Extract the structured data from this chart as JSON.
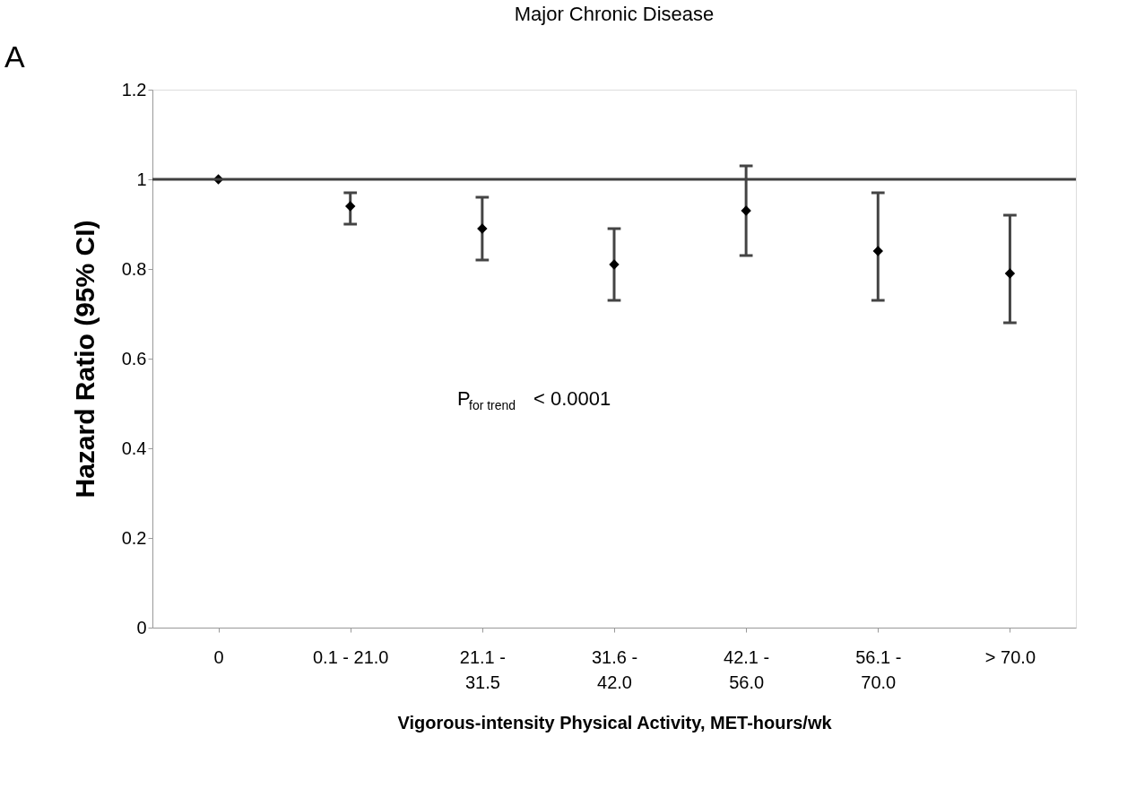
{
  "chart_data": {
    "type": "scatter",
    "title": "Major Chronic Disease",
    "xlabel": "Vigorous-intensity Physical Activity, MET-hours/wk",
    "ylabel": "Hazard Ratio (95% CI)",
    "categories": [
      "0",
      "0.1 - 21.0",
      "21.1 -\n31.5",
      "31.6 -\n42.0",
      "42.1 -\n56.0",
      "56.1 -\n70.0",
      "> 70.0"
    ],
    "series": [
      {
        "color": "#000000",
        "values": [
          1.0,
          0.94,
          0.89,
          0.81,
          0.93,
          0.84,
          0.79
        ],
        "errors": [
          null,
          [
            0.9,
            0.97
          ],
          [
            0.82,
            0.96
          ],
          [
            0.73,
            0.89
          ],
          [
            0.83,
            1.03
          ],
          [
            0.73,
            0.97
          ],
          [
            0.68,
            0.92
          ]
        ]
      }
    ],
    "marker": "diamond",
    "ylim": [
      0,
      1.2
    ],
    "yticks": [
      0,
      0.2,
      0.4,
      0.6,
      0.8,
      1,
      1.2
    ],
    "ref_lines": [
      {
        "axis": "y",
        "value": 1,
        "color": "#404040"
      }
    ],
    "grid": false,
    "annotations": [
      "A",
      "P$_{for  trend}$ < 0.0001"
    ]
  }
}
